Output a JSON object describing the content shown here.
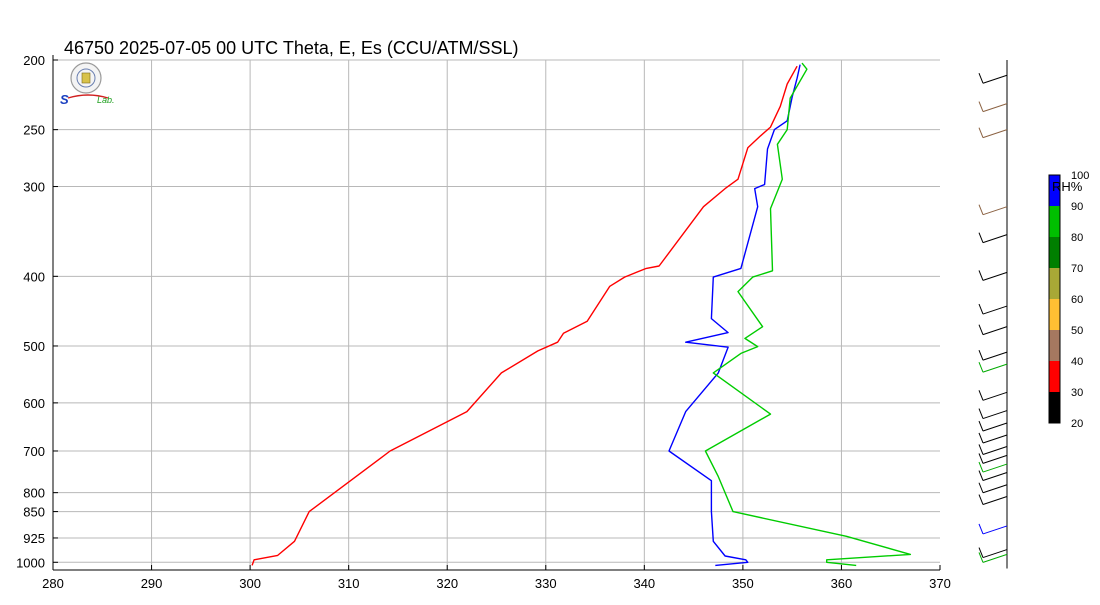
{
  "chart_data": {
    "type": "line",
    "title": "46750  2025-07-05 00 UTC  Theta, E, Es (CCU/ATM/SSL)",
    "xlim": [
      280,
      370
    ],
    "x_ticks": [
      280,
      290,
      300,
      310,
      320,
      330,
      340,
      350,
      360,
      370
    ],
    "y_scale": "log",
    "y_reversed": true,
    "ylim": [
      1025,
      200
    ],
    "y_ticks": [
      200,
      250,
      300,
      400,
      500,
      600,
      700,
      800,
      850,
      925,
      1000
    ],
    "grid": true,
    "series": [
      {
        "key": "theta",
        "color": "#ff0000",
        "points": [
          [
            300.2,
            1010
          ],
          [
            300.4,
            992
          ],
          [
            302.8,
            978
          ],
          [
            304.5,
            935
          ],
          [
            306.0,
            850
          ],
          [
            314.2,
            700
          ],
          [
            322.0,
            617
          ],
          [
            325.5,
            545
          ],
          [
            329.2,
            508
          ],
          [
            331.2,
            494
          ],
          [
            331.8,
            480
          ],
          [
            334.2,
            462
          ],
          [
            336.5,
            413
          ],
          [
            338.0,
            401
          ],
          [
            340.2,
            390
          ],
          [
            341.5,
            387
          ],
          [
            346.0,
            320
          ],
          [
            348.2,
            302
          ],
          [
            349.5,
            293
          ],
          [
            350.5,
            265
          ],
          [
            351.8,
            255
          ],
          [
            352.8,
            248
          ],
          [
            353.8,
            232
          ],
          [
            354.5,
            216
          ],
          [
            355.5,
            204
          ]
        ]
      },
      {
        "key": "equivalent",
        "color": "#0000ff",
        "points": [
          [
            347.2,
            1010
          ],
          [
            350.5,
            1000
          ],
          [
            350.3,
            992
          ],
          [
            348.2,
            980
          ],
          [
            347.0,
            935
          ],
          [
            346.8,
            850
          ],
          [
            346.8,
            770
          ],
          [
            342.5,
            700
          ],
          [
            344.2,
            617
          ],
          [
            347.5,
            545
          ],
          [
            348.5,
            502
          ],
          [
            344.2,
            494
          ],
          [
            348.5,
            479
          ],
          [
            346.8,
            458
          ],
          [
            347.0,
            401
          ],
          [
            349.8,
            390
          ],
          [
            351.5,
            320
          ],
          [
            351.2,
            302
          ],
          [
            352.2,
            298
          ],
          [
            352.5,
            266
          ],
          [
            353.2,
            250
          ],
          [
            354.5,
            243
          ],
          [
            355.0,
            225
          ],
          [
            355.5,
            212
          ],
          [
            355.8,
            203
          ]
        ]
      },
      {
        "key": "saturated",
        "color": "#00cc00",
        "points": [
          [
            361.5,
            1010
          ],
          [
            358.5,
            1000
          ],
          [
            358.5,
            992
          ],
          [
            367.0,
            975
          ],
          [
            360.5,
            920
          ],
          [
            349.0,
            850
          ],
          [
            347.5,
            760
          ],
          [
            346.2,
            700
          ],
          [
            352.8,
            622
          ],
          [
            347.0,
            545
          ],
          [
            349.8,
            512
          ],
          [
            351.5,
            501
          ],
          [
            350.2,
            488
          ],
          [
            352.0,
            470
          ],
          [
            349.5,
            420
          ],
          [
            351.0,
            401
          ],
          [
            353.0,
            393
          ],
          [
            352.8,
            322
          ],
          [
            354.0,
            293
          ],
          [
            353.5,
            262
          ],
          [
            354.5,
            250
          ],
          [
            354.8,
            226
          ],
          [
            356.5,
            206
          ],
          [
            356.0,
            202
          ]
        ]
      }
    ],
    "colorbar": {
      "label": "RH%",
      "ticks": [
        "20",
        "30",
        "40",
        "50",
        "60",
        "70",
        "80",
        "90",
        "100"
      ],
      "colors": [
        "#000000",
        "#ff0000",
        "#a57860",
        "#ffbf33",
        "#a8a836",
        "#007f00",
        "#00bf00",
        "#0000ff"
      ]
    },
    "wind_barbs": [
      {
        "p": 210,
        "color": "#000000"
      },
      {
        "p": 230,
        "color": "#8b6242"
      },
      {
        "p": 250,
        "color": "#8b6242"
      },
      {
        "p": 320,
        "color": "#8b6242"
      },
      {
        "p": 350,
        "color": "#000000"
      },
      {
        "p": 395,
        "color": "#000000"
      },
      {
        "p": 440,
        "color": "#000000"
      },
      {
        "p": 470,
        "color": "#000000"
      },
      {
        "p": 510,
        "color": "#000000"
      },
      {
        "p": 530,
        "color": "#00aa00"
      },
      {
        "p": 580,
        "color": "#000000"
      },
      {
        "p": 615,
        "color": "#000000"
      },
      {
        "p": 640,
        "color": "#000000"
      },
      {
        "p": 665,
        "color": "#000000"
      },
      {
        "p": 690,
        "color": "#000000"
      },
      {
        "p": 710,
        "color": "#000000"
      },
      {
        "p": 730,
        "color": "#00aa00"
      },
      {
        "p": 750,
        "color": "#000000"
      },
      {
        "p": 780,
        "color": "#000000"
      },
      {
        "p": 810,
        "color": "#000000"
      },
      {
        "p": 890,
        "color": "#0000ff"
      },
      {
        "p": 960,
        "color": "#000000"
      },
      {
        "p": 975,
        "color": "#00aa00"
      }
    ]
  }
}
